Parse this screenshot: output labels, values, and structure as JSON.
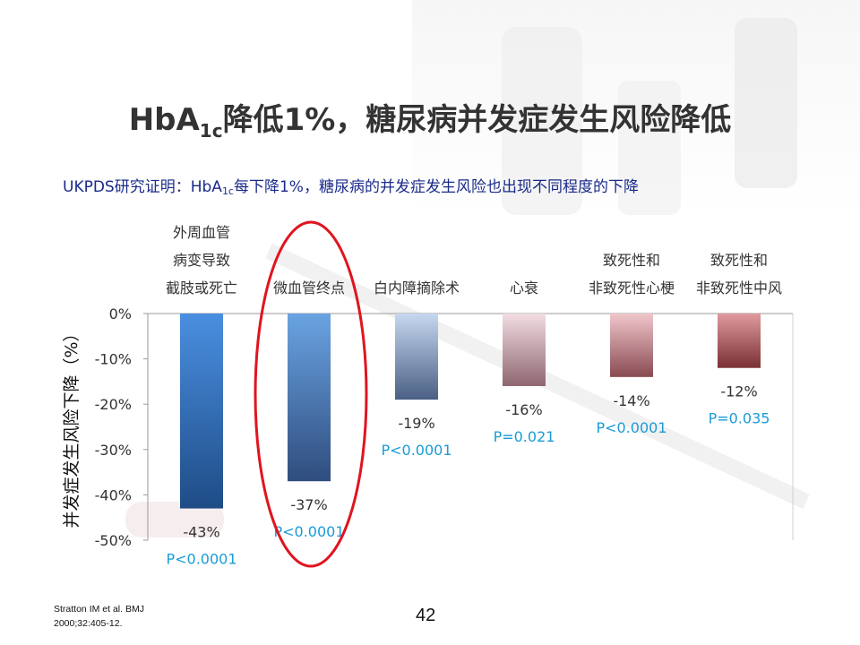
{
  "title": {
    "main": "HbA",
    "sub": "1c",
    "rest": "降低1%，糖尿病并发症发生风险降低"
  },
  "subtitle": {
    "prefix": "UKPDS研究证明：HbA",
    "sub": "1c",
    "rest": "每下降1%，糖尿病的并发症发生风险也出现不同程度的下降"
  },
  "reference": {
    "line1": "Stratton IM et al. BMJ",
    "line2": "2000;32:405-12."
  },
  "page_number": "42",
  "chart_data": {
    "type": "bar",
    "ylabel": "并发症发生风险下降（%）",
    "ylim": [
      -50,
      0
    ],
    "yticks": [
      "0%",
      "-10%",
      "-20%",
      "-30%",
      "-40%",
      "-50%"
    ],
    "ytick_values": [
      0,
      -10,
      -20,
      -30,
      -40,
      -50
    ],
    "categories": [
      [
        "外周血管",
        "病变导致",
        "截肢或死亡"
      ],
      [
        "微血管终点"
      ],
      [
        "白内障摘除术"
      ],
      [
        "心衰"
      ],
      [
        "致死性和",
        "非致死性心梗"
      ],
      [
        "致死性和",
        "非致死性中风"
      ]
    ],
    "values": [
      -43,
      -37,
      -19,
      -16,
      -14,
      -12
    ],
    "value_labels": [
      "-43%",
      "-37%",
      "-19%",
      "-16%",
      "-14%",
      "-12%"
    ],
    "p_values": [
      "P<0.0001",
      "P<0.0001",
      "P<0.0001",
      "P=0.021",
      "P<0.0001",
      "P=0.035"
    ],
    "bar_colors": [
      [
        "#4a8fe0",
        "#1f4c86"
      ],
      [
        "#6aa3e2",
        "#2f4d7e"
      ],
      [
        "#c6d8f0",
        "#4a5f84"
      ],
      [
        "#f2dde2",
        "#8e6670"
      ],
      [
        "#f0c7cc",
        "#8a4a52"
      ],
      [
        "#e09a9e",
        "#7a3034"
      ]
    ],
    "highlight_index": 1,
    "highlight_color": "#e0141e",
    "pvalue_color": "#1a9bd6"
  }
}
